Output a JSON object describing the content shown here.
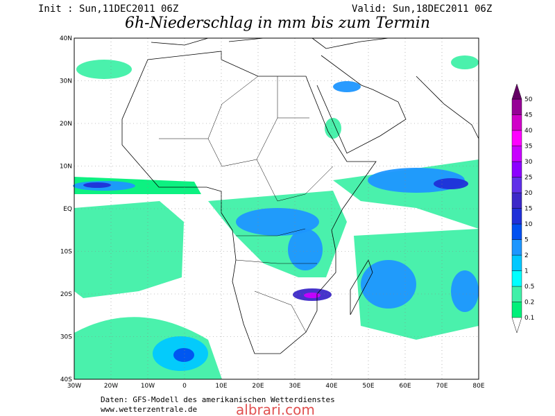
{
  "header": {
    "init": "Init : Sun,11DEC2011 06Z",
    "valid": "Valid: Sun,18DEC2011 06Z",
    "title": "6h-Niederschlag in mm bis zum Termin"
  },
  "map": {
    "lat_labels": [
      "40N",
      "30N",
      "20N",
      "10N",
      "EQ",
      "10S",
      "20S",
      "30S",
      "40S"
    ],
    "lon_labels": [
      "30W",
      "20W",
      "10W",
      "0",
      "10E",
      "20E",
      "30E",
      "40E",
      "50E",
      "60E",
      "70E",
      "80E"
    ]
  },
  "colorbar": {
    "labels": [
      "0.1",
      "0.2",
      "0.5",
      "1",
      "2",
      "5",
      "10",
      "15",
      "20",
      "25",
      "30",
      "35",
      "40",
      "45",
      "50"
    ],
    "colors": [
      "#00f07a",
      "#40f0a8",
      "#00ffff",
      "#00c8ff",
      "#1e96ff",
      "#0050f0",
      "#2030d8",
      "#3c28c8",
      "#6030e8",
      "#8c00ff",
      "#c800ff",
      "#ff00ff",
      "#d000c8",
      "#960096",
      "#640064"
    ]
  },
  "footer": {
    "source": "Daten: GFS-Modell des amerikanischen Wetterdienstes",
    "url": "www.wetterzentrale.de",
    "watermark": "albrari.com"
  }
}
